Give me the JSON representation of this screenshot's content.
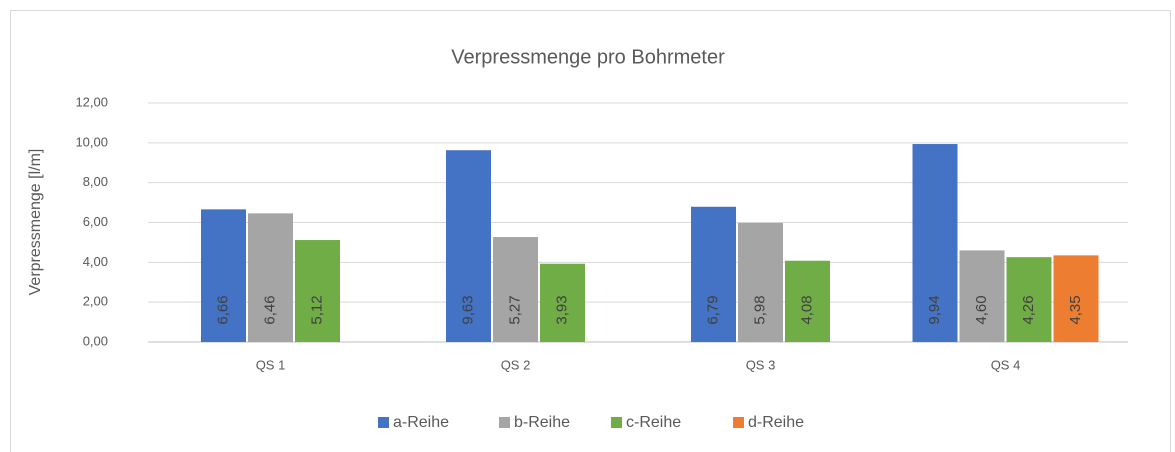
{
  "chart_data": {
    "type": "bar",
    "title": "Verpressmenge pro Bohrmeter",
    "y_label": "Verpressmenge [l/m]",
    "categories": [
      "QS 1",
      "QS 2",
      "QS 3",
      "QS 4"
    ],
    "series": [
      {
        "name": "a-Reihe",
        "color": "#4472c4",
        "values": [
          6.66,
          9.63,
          6.79,
          9.94
        ],
        "value_labels": [
          "6,66",
          "9,63",
          "6,79",
          "9,94"
        ]
      },
      {
        "name": "b-Reihe",
        "color": "#a5a5a5",
        "values": [
          6.46,
          5.27,
          5.98,
          4.6
        ],
        "value_labels": [
          "6,46",
          "5,27",
          "5,98",
          "4,60"
        ]
      },
      {
        "name": "c-Reihe",
        "color": "#70ad47",
        "values": [
          5.12,
          3.93,
          4.08,
          4.26
        ],
        "value_labels": [
          "5,12",
          "3,93",
          "4,08",
          "4,26"
        ]
      },
      {
        "name": "d-Reihe",
        "color": "#ed7d31",
        "values": [
          null,
          null,
          null,
          4.35
        ],
        "value_labels": [
          null,
          null,
          null,
          "4,35"
        ]
      }
    ],
    "ylim": [
      0,
      12
    ],
    "yticks": [
      {
        "value": 0,
        "label": "0,00"
      },
      {
        "value": 2,
        "label": "2,00"
      },
      {
        "value": 4,
        "label": "4,00"
      },
      {
        "value": 6,
        "label": "6,00"
      },
      {
        "value": 8,
        "label": "8,00"
      },
      {
        "value": 10,
        "label": "10,00"
      },
      {
        "value": 12,
        "label": "12,00"
      }
    ],
    "grid": true,
    "legend": "bottom"
  }
}
